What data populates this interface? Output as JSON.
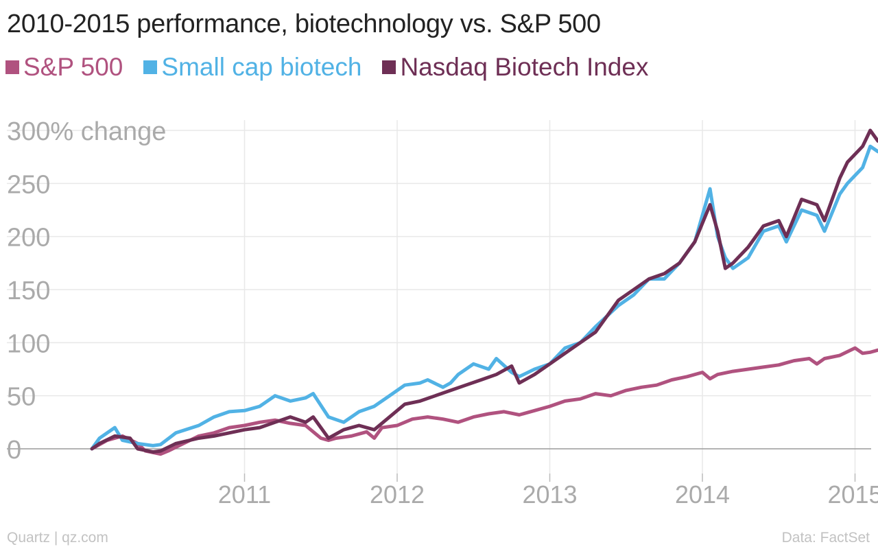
{
  "chart_data": {
    "type": "line",
    "title": "2010-2015 performance, biotechnology vs. S&P 500",
    "ylabel": "",
    "xlabel": "",
    "ylim": [
      -5,
      300
    ],
    "xlim": [
      2010.0,
      2015.2
    ],
    "y_ticks": [
      {
        "value": 300,
        "label": "300% change"
      },
      {
        "value": 250,
        "label": "250"
      },
      {
        "value": 200,
        "label": "200"
      },
      {
        "value": 150,
        "label": "150"
      },
      {
        "value": 100,
        "label": "100"
      },
      {
        "value": 50,
        "label": "50"
      },
      {
        "value": 0,
        "label": "0"
      }
    ],
    "x_ticks": [
      {
        "value": 2011,
        "label": "2011"
      },
      {
        "value": 2012,
        "label": "2012"
      },
      {
        "value": 2013,
        "label": "2013"
      },
      {
        "value": 2014,
        "label": "2014"
      },
      {
        "value": 2015,
        "label": "2015"
      }
    ],
    "grid": true,
    "legend_position": "top-left",
    "series": [
      {
        "name": "S&P 500",
        "color": "#b0527f",
        "x": [
          2010.0,
          2010.1,
          2010.2,
          2010.3,
          2010.35,
          2010.45,
          2010.5,
          2010.6,
          2010.7,
          2010.8,
          2010.9,
          2011.0,
          2011.1,
          2011.2,
          2011.3,
          2011.4,
          2011.5,
          2011.55,
          2011.6,
          2011.7,
          2011.8,
          2011.85,
          2011.9,
          2012.0,
          2012.1,
          2012.2,
          2012.3,
          2012.4,
          2012.5,
          2012.6,
          2012.7,
          2012.8,
          2012.9,
          2013.0,
          2013.1,
          2013.2,
          2013.3,
          2013.4,
          2013.5,
          2013.6,
          2013.7,
          2013.8,
          2013.9,
          2014.0,
          2014.05,
          2014.1,
          2014.2,
          2014.3,
          2014.4,
          2014.5,
          2014.6,
          2014.7,
          2014.75,
          2014.8,
          2014.9,
          2015.0,
          2015.05,
          2015.1,
          2015.15
        ],
        "values": [
          0,
          8,
          12,
          5,
          -2,
          -5,
          -2,
          5,
          12,
          15,
          20,
          22,
          25,
          27,
          24,
          22,
          10,
          8,
          10,
          12,
          16,
          10,
          20,
          22,
          28,
          30,
          28,
          25,
          30,
          33,
          35,
          32,
          36,
          40,
          45,
          47,
          52,
          50,
          55,
          58,
          60,
          65,
          68,
          72,
          66,
          70,
          73,
          75,
          77,
          79,
          83,
          85,
          80,
          85,
          88,
          95,
          90,
          91,
          93
        ]
      },
      {
        "name": "Small cap biotech",
        "color": "#51b2e5",
        "x": [
          2010.0,
          2010.05,
          2010.15,
          2010.2,
          2010.3,
          2010.4,
          2010.45,
          2010.55,
          2010.7,
          2010.8,
          2010.9,
          2011.0,
          2011.1,
          2011.2,
          2011.3,
          2011.4,
          2011.45,
          2011.55,
          2011.65,
          2011.75,
          2011.85,
          2011.95,
          2012.05,
          2012.15,
          2012.2,
          2012.3,
          2012.35,
          2012.4,
          2012.5,
          2012.6,
          2012.65,
          2012.75,
          2012.8,
          2012.9,
          2013.0,
          2013.1,
          2013.2,
          2013.3,
          2013.45,
          2013.55,
          2013.65,
          2013.75,
          2013.85,
          2013.95,
          2014.05,
          2014.1,
          2014.15,
          2014.2,
          2014.3,
          2014.4,
          2014.5,
          2014.55,
          2014.65,
          2014.75,
          2014.8,
          2014.9,
          2014.95,
          2015.05,
          2015.1,
          2015.15
        ],
        "values": [
          0,
          10,
          20,
          8,
          5,
          3,
          4,
          15,
          22,
          30,
          35,
          36,
          40,
          50,
          45,
          48,
          52,
          30,
          25,
          35,
          40,
          50,
          60,
          62,
          65,
          58,
          62,
          70,
          80,
          75,
          85,
          72,
          68,
          75,
          80,
          95,
          100,
          115,
          135,
          145,
          160,
          160,
          175,
          195,
          245,
          200,
          180,
          170,
          180,
          205,
          210,
          195,
          225,
          220,
          205,
          240,
          250,
          265,
          285,
          280
        ]
      },
      {
        "name": "Nasdaq Biotech Index",
        "color": "#6e2f55",
        "x": [
          2010.0,
          2010.05,
          2010.15,
          2010.25,
          2010.3,
          2010.4,
          2010.45,
          2010.55,
          2010.7,
          2010.8,
          2010.9,
          2011.0,
          2011.1,
          2011.2,
          2011.3,
          2011.4,
          2011.45,
          2011.55,
          2011.65,
          2011.75,
          2011.85,
          2011.95,
          2012.05,
          2012.15,
          2012.25,
          2012.35,
          2012.45,
          2012.55,
          2012.65,
          2012.75,
          2012.8,
          2012.9,
          2013.0,
          2013.1,
          2013.2,
          2013.3,
          2013.45,
          2013.55,
          2013.65,
          2013.75,
          2013.85,
          2013.95,
          2014.05,
          2014.1,
          2014.15,
          2014.2,
          2014.3,
          2014.4,
          2014.5,
          2014.55,
          2014.65,
          2014.75,
          2014.8,
          2014.9,
          2014.95,
          2015.05,
          2015.1,
          2015.15
        ],
        "values": [
          0,
          5,
          12,
          10,
          0,
          -3,
          -2,
          5,
          10,
          12,
          15,
          18,
          20,
          25,
          30,
          25,
          30,
          10,
          18,
          22,
          18,
          30,
          42,
          45,
          50,
          55,
          60,
          65,
          70,
          78,
          62,
          70,
          80,
          90,
          100,
          110,
          140,
          150,
          160,
          165,
          175,
          195,
          230,
          205,
          170,
          175,
          190,
          210,
          215,
          200,
          235,
          230,
          215,
          255,
          270,
          285,
          300,
          290
        ]
      }
    ]
  },
  "source_left": "Quartz | qz.com",
  "source_right": "Data: FactSet"
}
